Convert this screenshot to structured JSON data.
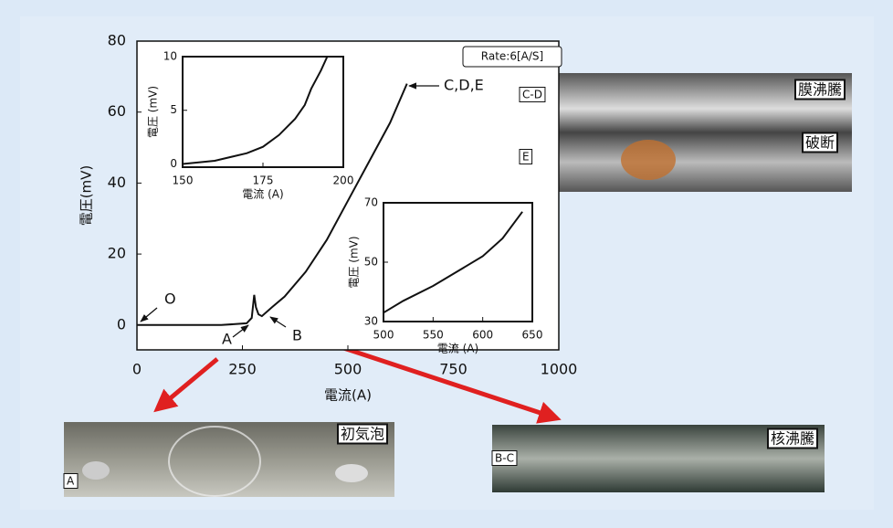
{
  "chart_data": [
    {
      "type": "line",
      "xlabel": "電流(A)",
      "ylabel": "電圧(mV)",
      "x": [
        0,
        100,
        200,
        260,
        272,
        278,
        282,
        288,
        296,
        320,
        350,
        400,
        450,
        500,
        550,
        600,
        640
      ],
      "values": [
        0,
        0,
        0,
        0.5,
        2,
        8.5,
        5,
        3,
        2.5,
        5,
        8,
        15,
        24,
        35,
        46,
        57,
        68
      ],
      "color": "#111111",
      "xlim": [
        0,
        1000
      ],
      "ylim": [
        -7,
        80
      ],
      "xticks": [
        0,
        250,
        500,
        750,
        1000
      ],
      "yticks": [
        0,
        20,
        40,
        60,
        80
      ],
      "annotations": [
        "O",
        "A",
        "B",
        "C,D,E",
        "Rate:6[A/S]"
      ]
    },
    {
      "type": "line",
      "xlabel": "電流 (A)",
      "ylabel": "電圧 (mV)",
      "x": [
        150,
        160,
        170,
        175,
        180,
        185,
        188,
        190,
        193,
        195
      ],
      "values": [
        0,
        0.3,
        1,
        1.6,
        2.7,
        4.2,
        5.5,
        7,
        8.7,
        10
      ],
      "color": "#111111",
      "xlim": [
        150,
        200
      ],
      "ylim": [
        -0.3,
        10
      ],
      "xticks": [
        150,
        175,
        200
      ],
      "yticks": [
        0,
        5,
        10
      ]
    },
    {
      "type": "line",
      "xlabel": "電流 (A)",
      "ylabel": "電圧 (mV)",
      "x": [
        500,
        520,
        550,
        570,
        600,
        620,
        640
      ],
      "values": [
        33,
        37,
        42,
        46,
        52,
        58,
        67
      ],
      "color": "#111111",
      "xlim": [
        500,
        650
      ],
      "ylim": [
        30,
        70
      ],
      "xticks": [
        500,
        550,
        600,
        650
      ],
      "yticks": [
        30,
        50,
        70
      ]
    }
  ],
  "photos": [
    {
      "labels": [
        "C-D",
        "膜沸騰",
        "E",
        "破断"
      ]
    },
    {
      "labels": [
        "A",
        "初気泡"
      ]
    },
    {
      "labels": [
        "B-C",
        "核沸騰"
      ]
    }
  ]
}
